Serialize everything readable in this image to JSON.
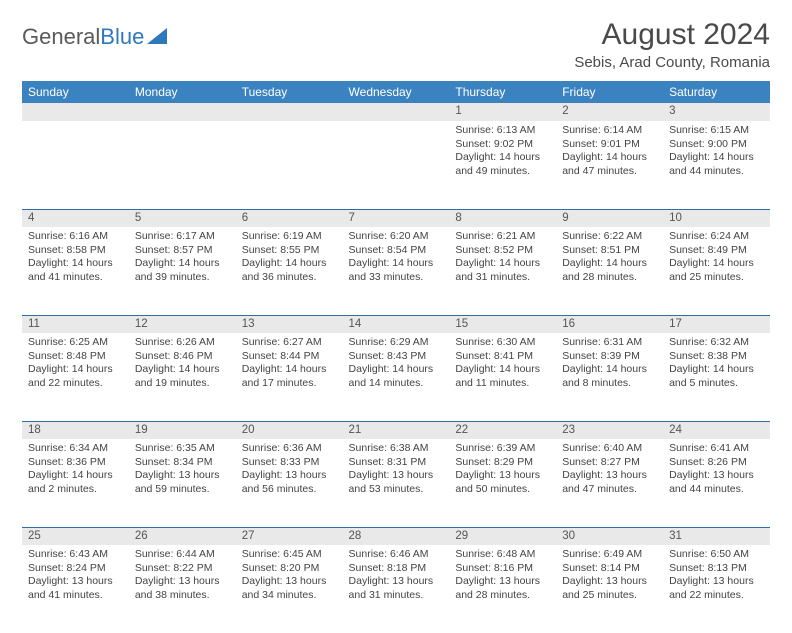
{
  "logo": {
    "text1": "General",
    "text2": "Blue"
  },
  "title": "August 2024",
  "location": "Sebis, Arad County, Romania",
  "colors": {
    "header_bg": "#3b83c0",
    "header_fg": "#ffffff",
    "daynum_bg": "#e9e9e9",
    "row_border": "#2f6da3",
    "logo_blue": "#2f78bd",
    "text": "#444444"
  },
  "weekdays": [
    "Sunday",
    "Monday",
    "Tuesday",
    "Wednesday",
    "Thursday",
    "Friday",
    "Saturday"
  ],
  "weeks": [
    {
      "days": [
        {
          "num": "",
          "lines": []
        },
        {
          "num": "",
          "lines": []
        },
        {
          "num": "",
          "lines": []
        },
        {
          "num": "",
          "lines": []
        },
        {
          "num": "1",
          "lines": [
            "Sunrise: 6:13 AM",
            "Sunset: 9:02 PM",
            "Daylight: 14 hours",
            "and 49 minutes."
          ]
        },
        {
          "num": "2",
          "lines": [
            "Sunrise: 6:14 AM",
            "Sunset: 9:01 PM",
            "Daylight: 14 hours",
            "and 47 minutes."
          ]
        },
        {
          "num": "3",
          "lines": [
            "Sunrise: 6:15 AM",
            "Sunset: 9:00 PM",
            "Daylight: 14 hours",
            "and 44 minutes."
          ]
        }
      ]
    },
    {
      "days": [
        {
          "num": "4",
          "lines": [
            "Sunrise: 6:16 AM",
            "Sunset: 8:58 PM",
            "Daylight: 14 hours",
            "and 41 minutes."
          ]
        },
        {
          "num": "5",
          "lines": [
            "Sunrise: 6:17 AM",
            "Sunset: 8:57 PM",
            "Daylight: 14 hours",
            "and 39 minutes."
          ]
        },
        {
          "num": "6",
          "lines": [
            "Sunrise: 6:19 AM",
            "Sunset: 8:55 PM",
            "Daylight: 14 hours",
            "and 36 minutes."
          ]
        },
        {
          "num": "7",
          "lines": [
            "Sunrise: 6:20 AM",
            "Sunset: 8:54 PM",
            "Daylight: 14 hours",
            "and 33 minutes."
          ]
        },
        {
          "num": "8",
          "lines": [
            "Sunrise: 6:21 AM",
            "Sunset: 8:52 PM",
            "Daylight: 14 hours",
            "and 31 minutes."
          ]
        },
        {
          "num": "9",
          "lines": [
            "Sunrise: 6:22 AM",
            "Sunset: 8:51 PM",
            "Daylight: 14 hours",
            "and 28 minutes."
          ]
        },
        {
          "num": "10",
          "lines": [
            "Sunrise: 6:24 AM",
            "Sunset: 8:49 PM",
            "Daylight: 14 hours",
            "and 25 minutes."
          ]
        }
      ]
    },
    {
      "days": [
        {
          "num": "11",
          "lines": [
            "Sunrise: 6:25 AM",
            "Sunset: 8:48 PM",
            "Daylight: 14 hours",
            "and 22 minutes."
          ]
        },
        {
          "num": "12",
          "lines": [
            "Sunrise: 6:26 AM",
            "Sunset: 8:46 PM",
            "Daylight: 14 hours",
            "and 19 minutes."
          ]
        },
        {
          "num": "13",
          "lines": [
            "Sunrise: 6:27 AM",
            "Sunset: 8:44 PM",
            "Daylight: 14 hours",
            "and 17 minutes."
          ]
        },
        {
          "num": "14",
          "lines": [
            "Sunrise: 6:29 AM",
            "Sunset: 8:43 PM",
            "Daylight: 14 hours",
            "and 14 minutes."
          ]
        },
        {
          "num": "15",
          "lines": [
            "Sunrise: 6:30 AM",
            "Sunset: 8:41 PM",
            "Daylight: 14 hours",
            "and 11 minutes."
          ]
        },
        {
          "num": "16",
          "lines": [
            "Sunrise: 6:31 AM",
            "Sunset: 8:39 PM",
            "Daylight: 14 hours",
            "and 8 minutes."
          ]
        },
        {
          "num": "17",
          "lines": [
            "Sunrise: 6:32 AM",
            "Sunset: 8:38 PM",
            "Daylight: 14 hours",
            "and 5 minutes."
          ]
        }
      ]
    },
    {
      "days": [
        {
          "num": "18",
          "lines": [
            "Sunrise: 6:34 AM",
            "Sunset: 8:36 PM",
            "Daylight: 14 hours",
            "and 2 minutes."
          ]
        },
        {
          "num": "19",
          "lines": [
            "Sunrise: 6:35 AM",
            "Sunset: 8:34 PM",
            "Daylight: 13 hours",
            "and 59 minutes."
          ]
        },
        {
          "num": "20",
          "lines": [
            "Sunrise: 6:36 AM",
            "Sunset: 8:33 PM",
            "Daylight: 13 hours",
            "and 56 minutes."
          ]
        },
        {
          "num": "21",
          "lines": [
            "Sunrise: 6:38 AM",
            "Sunset: 8:31 PM",
            "Daylight: 13 hours",
            "and 53 minutes."
          ]
        },
        {
          "num": "22",
          "lines": [
            "Sunrise: 6:39 AM",
            "Sunset: 8:29 PM",
            "Daylight: 13 hours",
            "and 50 minutes."
          ]
        },
        {
          "num": "23",
          "lines": [
            "Sunrise: 6:40 AM",
            "Sunset: 8:27 PM",
            "Daylight: 13 hours",
            "and 47 minutes."
          ]
        },
        {
          "num": "24",
          "lines": [
            "Sunrise: 6:41 AM",
            "Sunset: 8:26 PM",
            "Daylight: 13 hours",
            "and 44 minutes."
          ]
        }
      ]
    },
    {
      "days": [
        {
          "num": "25",
          "lines": [
            "Sunrise: 6:43 AM",
            "Sunset: 8:24 PM",
            "Daylight: 13 hours",
            "and 41 minutes."
          ]
        },
        {
          "num": "26",
          "lines": [
            "Sunrise: 6:44 AM",
            "Sunset: 8:22 PM",
            "Daylight: 13 hours",
            "and 38 minutes."
          ]
        },
        {
          "num": "27",
          "lines": [
            "Sunrise: 6:45 AM",
            "Sunset: 8:20 PM",
            "Daylight: 13 hours",
            "and 34 minutes."
          ]
        },
        {
          "num": "28",
          "lines": [
            "Sunrise: 6:46 AM",
            "Sunset: 8:18 PM",
            "Daylight: 13 hours",
            "and 31 minutes."
          ]
        },
        {
          "num": "29",
          "lines": [
            "Sunrise: 6:48 AM",
            "Sunset: 8:16 PM",
            "Daylight: 13 hours",
            "and 28 minutes."
          ]
        },
        {
          "num": "30",
          "lines": [
            "Sunrise: 6:49 AM",
            "Sunset: 8:14 PM",
            "Daylight: 13 hours",
            "and 25 minutes."
          ]
        },
        {
          "num": "31",
          "lines": [
            "Sunrise: 6:50 AM",
            "Sunset: 8:13 PM",
            "Daylight: 13 hours",
            "and 22 minutes."
          ]
        }
      ]
    }
  ]
}
